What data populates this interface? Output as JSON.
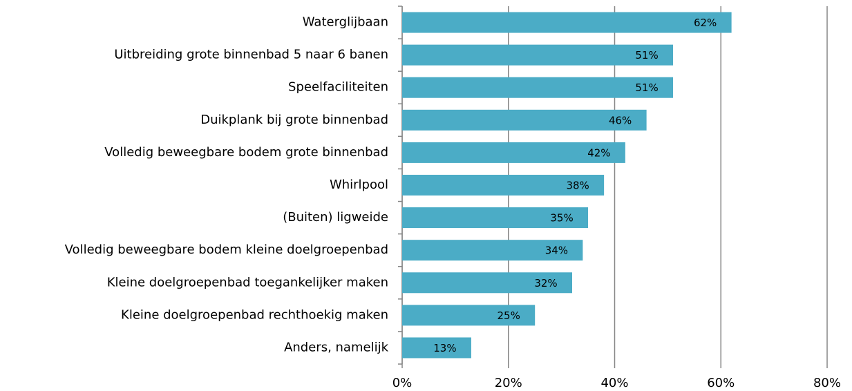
{
  "chart_data": {
    "type": "bar",
    "orientation": "horizontal",
    "categories": [
      "Waterglijbaan",
      "Uitbreiding grote binnenbad 5 naar 6 banen",
      "Speelfaciliteiten",
      "Duikplank bij grote binnenbad",
      "Volledig beweegbare bodem grote binnenbad",
      "Whirlpool",
      "(Buiten) ligweide",
      "Volledig beweegbare bodem kleine doelgroepenbad",
      "Kleine doelgroepenbad toegankelijker maken",
      "Kleine doelgroepenbad rechthoekig maken",
      "Anders, namelijk"
    ],
    "values": [
      62,
      51,
      51,
      46,
      42,
      38,
      35,
      34,
      32,
      25,
      13
    ],
    "value_labels": [
      "62%",
      "51%",
      "51%",
      "46%",
      "42%",
      "38%",
      "35%",
      "34%",
      "32%",
      "25%",
      "13%"
    ],
    "color": "#4bacc6",
    "xlim": [
      0,
      80
    ],
    "xticks": [
      {
        "value": 0,
        "label": "0%"
      },
      {
        "value": 20,
        "label": "20%"
      },
      {
        "value": 40,
        "label": "40%"
      },
      {
        "value": 60,
        "label": "60%"
      },
      {
        "value": 80,
        "label": "80%"
      }
    ],
    "grid": true
  }
}
